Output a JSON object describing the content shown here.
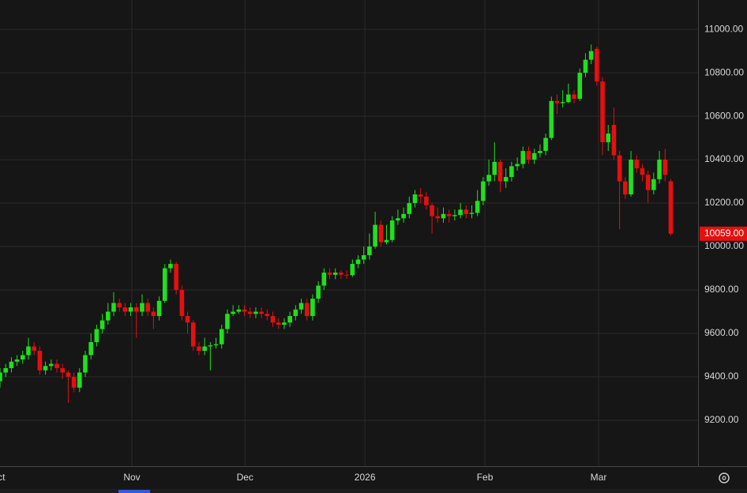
{
  "chart_data": {
    "type": "candlestick",
    "up_color": "#1fe01f",
    "down_color": "#e60f0f",
    "grid": true,
    "xlim": [
      0,
      122.8
    ],
    "xticks": [
      {
        "value": -0.4,
        "label": "Oct"
      },
      {
        "value": 23.2,
        "label": "Nov"
      },
      {
        "value": 43.1,
        "label": "Dec"
      },
      {
        "value": 64.2,
        "label": "2026"
      },
      {
        "value": 85.3,
        "label": "Feb"
      },
      {
        "value": 105.3,
        "label": "Mar"
      }
    ],
    "ylim": [
      8989,
      11135
    ],
    "yticks": [
      {
        "value": 9200,
        "label": "9200.00"
      },
      {
        "value": 9400,
        "label": "9400.00"
      },
      {
        "value": 9600,
        "label": "9600.00"
      },
      {
        "value": 9800,
        "label": "9800.00"
      },
      {
        "value": 10000,
        "label": "10000.00"
      },
      {
        "value": 10200,
        "label": "10200.00"
      },
      {
        "value": 10400,
        "label": "10400.00"
      },
      {
        "value": 10600,
        "label": "10600.00"
      },
      {
        "value": 10800,
        "label": "10800.00"
      },
      {
        "value": 11000,
        "label": "11000.00"
      }
    ],
    "last_price": {
      "value": 10059,
      "label": "10059.00"
    },
    "open": [
      9380,
      9420,
      9440,
      9470,
      9480,
      9500,
      9540,
      9520,
      9430,
      9450,
      9460,
      9440,
      9420,
      9400,
      9350,
      9420,
      9500,
      9560,
      9620,
      9660,
      9700,
      9740,
      9720,
      9700,
      9720,
      9700,
      9740,
      9700,
      9680,
      9750,
      9900,
      9920,
      9800,
      9680,
      9650,
      9540,
      9520,
      9540,
      9545,
      9550,
      9620,
      9690,
      9700,
      9710,
      9700,
      9690,
      9700,
      9690,
      9680,
      9650,
      9640,
      9650,
      9680,
      9710,
      9740,
      9680,
      9760,
      9820,
      9880,
      9870,
      9880,
      9870,
      9868,
      9920,
      9940,
      9960,
      10000,
      10100,
      10020,
      10030,
      10120,
      10130,
      10150,
      10200,
      10240,
      10230,
      10190,
      10140,
      10130,
      10150,
      10140,
      10145,
      10170,
      10150,
      10155,
      10210,
      10300,
      10330,
      10390,
      10300,
      10320,
      10370,
      10380,
      10440,
      10400,
      10430,
      10440,
      10500,
      10670,
      10660,
      10665,
      10700,
      10680,
      10800,
      10860,
      10910,
      10760,
      10480,
      10560,
      10420,
      10300,
      10240,
      10400,
      10360,
      10330,
      10260,
      10310,
      10400,
      10300
    ],
    "high": [
      9440,
      9460,
      9490,
      9500,
      9520,
      9580,
      9560,
      9540,
      9470,
      9480,
      9480,
      9460,
      9430,
      9420,
      9440,
      9520,
      9600,
      9640,
      9690,
      9740,
      9790,
      9760,
      9740,
      9740,
      9740,
      9780,
      9760,
      9720,
      9770,
      9920,
      9940,
      9930,
      9820,
      9700,
      9660,
      9560,
      9580,
      9560,
      9580,
      9640,
      9710,
      9730,
      9730,
      9730,
      9720,
      9720,
      9720,
      9710,
      9700,
      9670,
      9670,
      9700,
      9730,
      9760,
      9760,
      9780,
      9840,
      9900,
      9900,
      9900,
      9890,
      9890,
      9940,
      9960,
      10000,
      10060,
      10160,
      10120,
      10100,
      10140,
      10170,
      10180,
      10230,
      10260,
      10270,
      10250,
      10200,
      10180,
      10180,
      10170,
      10170,
      10200,
      10190,
      10190,
      10260,
      10320,
      10400,
      10480,
      10400,
      10360,
      10390,
      10410,
      10460,
      10460,
      10450,
      10470,
      10520,
      10690,
      10700,
      10720,
      10750,
      10720,
      10820,
      10890,
      10930,
      10920,
      10780,
      10560,
      10640,
      10440,
      10320,
      10440,
      10420,
      10380,
      10350,
      10340,
      10440,
      10450,
      10310
    ],
    "low": [
      9350,
      9400,
      9420,
      9450,
      9460,
      9480,
      9500,
      9410,
      9410,
      9430,
      9420,
      9390,
      9280,
      9330,
      9330,
      9400,
      9480,
      9540,
      9600,
      9640,
      9680,
      9700,
      9680,
      9680,
      9580,
      9680,
      9680,
      9620,
      9660,
      9740,
      9880,
      9780,
      9660,
      9600,
      9520,
      9500,
      9500,
      9430,
      9530,
      9530,
      9600,
      9680,
      9690,
      9680,
      9670,
      9670,
      9670,
      9660,
      9630,
      9620,
      9620,
      9630,
      9660,
      9690,
      9660,
      9660,
      9740,
      9800,
      9850,
      9850,
      9850,
      9850,
      9860,
      9900,
      9920,
      9940,
      9990,
      10000,
      10010,
      10020,
      10100,
      10110,
      10130,
      10180,
      10200,
      10170,
      10060,
      10110,
      10110,
      10110,
      10120,
      10130,
      10130,
      10130,
      10140,
      10190,
      10280,
      10300,
      10250,
      10270,
      10300,
      10350,
      10360,
      10380,
      10380,
      10410,
      10420,
      10490,
      10610,
      10640,
      10660,
      10660,
      10670,
      10780,
      10840,
      10740,
      10420,
      10440,
      10400,
      10080,
      10220,
      10230,
      10340,
      10300,
      10200,
      10240,
      10290,
      10300,
      10050
    ],
    "close": [
      9420,
      9440,
      9470,
      9480,
      9500,
      9540,
      9520,
      9430,
      9450,
      9460,
      9440,
      9420,
      9400,
      9350,
      9420,
      9500,
      9560,
      9620,
      9660,
      9700,
      9740,
      9720,
      9700,
      9720,
      9700,
      9740,
      9700,
      9680,
      9750,
      9900,
      9920,
      9800,
      9680,
      9650,
      9540,
      9520,
      9540,
      9545,
      9550,
      9620,
      9690,
      9700,
      9710,
      9700,
      9690,
      9700,
      9690,
      9680,
      9650,
      9640,
      9650,
      9680,
      9710,
      9740,
      9680,
      9760,
      9820,
      9880,
      9870,
      9880,
      9870,
      9868,
      9920,
      9940,
      9960,
      10000,
      10100,
      10020,
      10030,
      10120,
      10130,
      10150,
      10200,
      10240,
      10230,
      10190,
      10140,
      10130,
      10150,
      10140,
      10145,
      10170,
      10150,
      10155,
      10210,
      10300,
      10330,
      10390,
      10300,
      10320,
      10370,
      10380,
      10440,
      10400,
      10430,
      10440,
      10500,
      10670,
      10660,
      10665,
      10700,
      10680,
      10800,
      10860,
      10900,
      10760,
      10480,
      10520,
      10420,
      10300,
      10240,
      10400,
      10360,
      10330,
      10260,
      10310,
      10400,
      10330,
      10059
    ]
  }
}
